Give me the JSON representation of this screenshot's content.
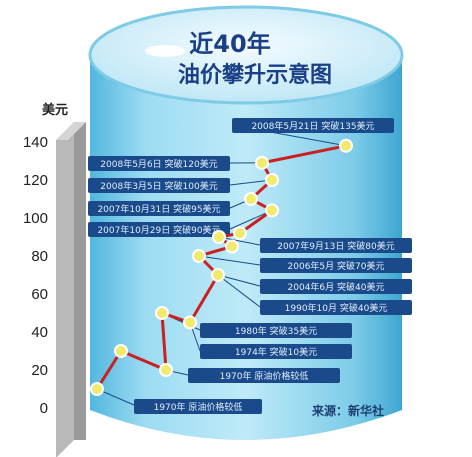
{
  "chart_data": {
    "type": "line",
    "title": "近40年",
    "subtitle": "油价攀升示意图",
    "ylabel": "美元",
    "ylim": [
      0,
      140
    ],
    "yticks": [
      "0",
      "20",
      "40",
      "60",
      "80",
      "100",
      "120",
      "140"
    ],
    "grid": false,
    "line_color": "#cc1f1f",
    "point_color": "#f2ea6b",
    "series": [
      {
        "values": [
          10,
          30,
          20,
          50,
          45,
          70,
          80,
          85,
          90,
          92,
          104,
          110,
          120,
          129,
          138
        ]
      }
    ],
    "annotations": [
      "2008年5月21日 突破135美元",
      "2008年5月6日 突破120美元",
      "2008年3月5日 突破100美元",
      "2007年10月31日 突破95美元",
      "2007年10月29日 突破90美元",
      "2007年9月13日 突破80美元",
      "2006年5月 突破70美元",
      "2004年6月 突破40美元",
      "1990年10月 突破40美元",
      "1980年 突破35美元",
      "1974年 突破10美元",
      "1970年 原油价格较低"
    ],
    "source": "来源：新华社"
  },
  "colors": {
    "cylinder": "#8fd3ec",
    "cylinder_top": "#d6f1fb",
    "callout": "#1a4a8a",
    "axis_shadow": "#8a8a8a"
  }
}
